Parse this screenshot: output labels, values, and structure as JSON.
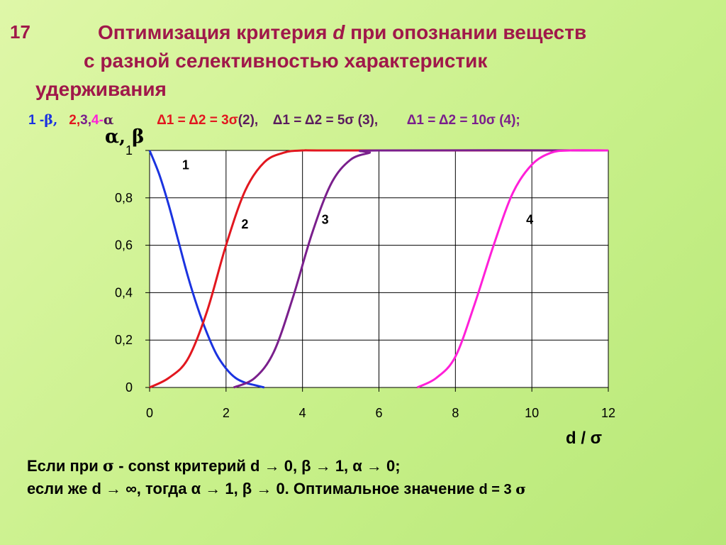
{
  "slide_number": "17",
  "title": {
    "line1_a": "Оптимизация критерия ",
    "line1_var": "d",
    "line1_b": "  при опознании веществ",
    "line2": "с разной селективностью характеристик",
    "line3": "удерживания"
  },
  "legend": {
    "item1_num": "1 - ",
    "item1_sym": "β,",
    "item2_num2": "2",
    "item2_c1": ",",
    "item2_num3": "3",
    "item2_c2": ",",
    "item2_num4": "4",
    "item2_dash": " - ",
    "item2_sym": "α",
    "cond2": "Δ1 = Δ2 = 3σ",
    "cond2_tag": " (2),",
    "cond3": "Δ1 = Δ2 = 5σ (3),",
    "cond4": "Δ1 = Δ2 = 10σ (4);"
  },
  "colors": {
    "background": "#c8f08a",
    "title": "#a0184a",
    "curve1": "#1b33e0",
    "curve2": "#e2171f",
    "curve3": "#7a1f8c",
    "curve4": "#ff1fd8"
  },
  "chart_data": {
    "type": "line",
    "xlim": [
      0,
      12
    ],
    "ylim": [
      0,
      1
    ],
    "xticks": [
      "0",
      "2",
      "4",
      "6",
      "8",
      "10",
      "12"
    ],
    "yticks": [
      "0",
      "0,2",
      "0,4",
      "0,6",
      "0,8",
      "1"
    ],
    "xlabel": "d / σ",
    "ylabel": "α, β",
    "grid": true,
    "series": [
      {
        "name": "1",
        "label": "1",
        "color": "#1b33e0",
        "x": [
          0,
          0.25,
          0.5,
          0.75,
          1.0,
          1.25,
          1.5,
          1.75,
          2.0,
          2.25,
          2.5,
          2.75,
          3.0
        ],
        "y": [
          1.0,
          0.9,
          0.77,
          0.62,
          0.47,
          0.34,
          0.23,
          0.14,
          0.08,
          0.04,
          0.02,
          0.01,
          0.0
        ]
      },
      {
        "name": "2",
        "label": "2",
        "color": "#e2171f",
        "x": [
          0,
          0.5,
          1.0,
          1.5,
          2.0,
          2.5,
          3.0,
          3.5,
          4.0,
          5.0,
          12
        ],
        "y": [
          0.0,
          0.04,
          0.12,
          0.32,
          0.6,
          0.83,
          0.95,
          0.99,
          1.0,
          1.0,
          1.0
        ]
      },
      {
        "name": "3",
        "label": "3",
        "color": "#7a1f8c",
        "x": [
          2.2,
          2.75,
          3.25,
          3.75,
          4.25,
          4.75,
          5.25,
          5.75,
          6.0,
          12
        ],
        "y": [
          0.0,
          0.04,
          0.15,
          0.38,
          0.65,
          0.86,
          0.96,
          0.99,
          1.0,
          1.0
        ]
      },
      {
        "name": "4",
        "label": "4",
        "color": "#ff1fd8",
        "x": [
          7.0,
          7.5,
          8.0,
          8.5,
          9.0,
          9.5,
          10.0,
          10.5,
          11.0,
          12
        ],
        "y": [
          0.0,
          0.04,
          0.13,
          0.35,
          0.6,
          0.82,
          0.94,
          0.99,
          1.0,
          1.0
        ]
      }
    ]
  },
  "bottom": {
    "line1_a": "Если при  ",
    "line1_sigma": "σ",
    "line1_b": " - const критерий d → 0,   β  → 1, α → 0;",
    "line2_a": "если же d → ∞,  тогда α → 1,    β → 0.  Оптимальное значение ",
    "line2_b": "d = 3 ",
    "line2_sigma": "σ"
  }
}
